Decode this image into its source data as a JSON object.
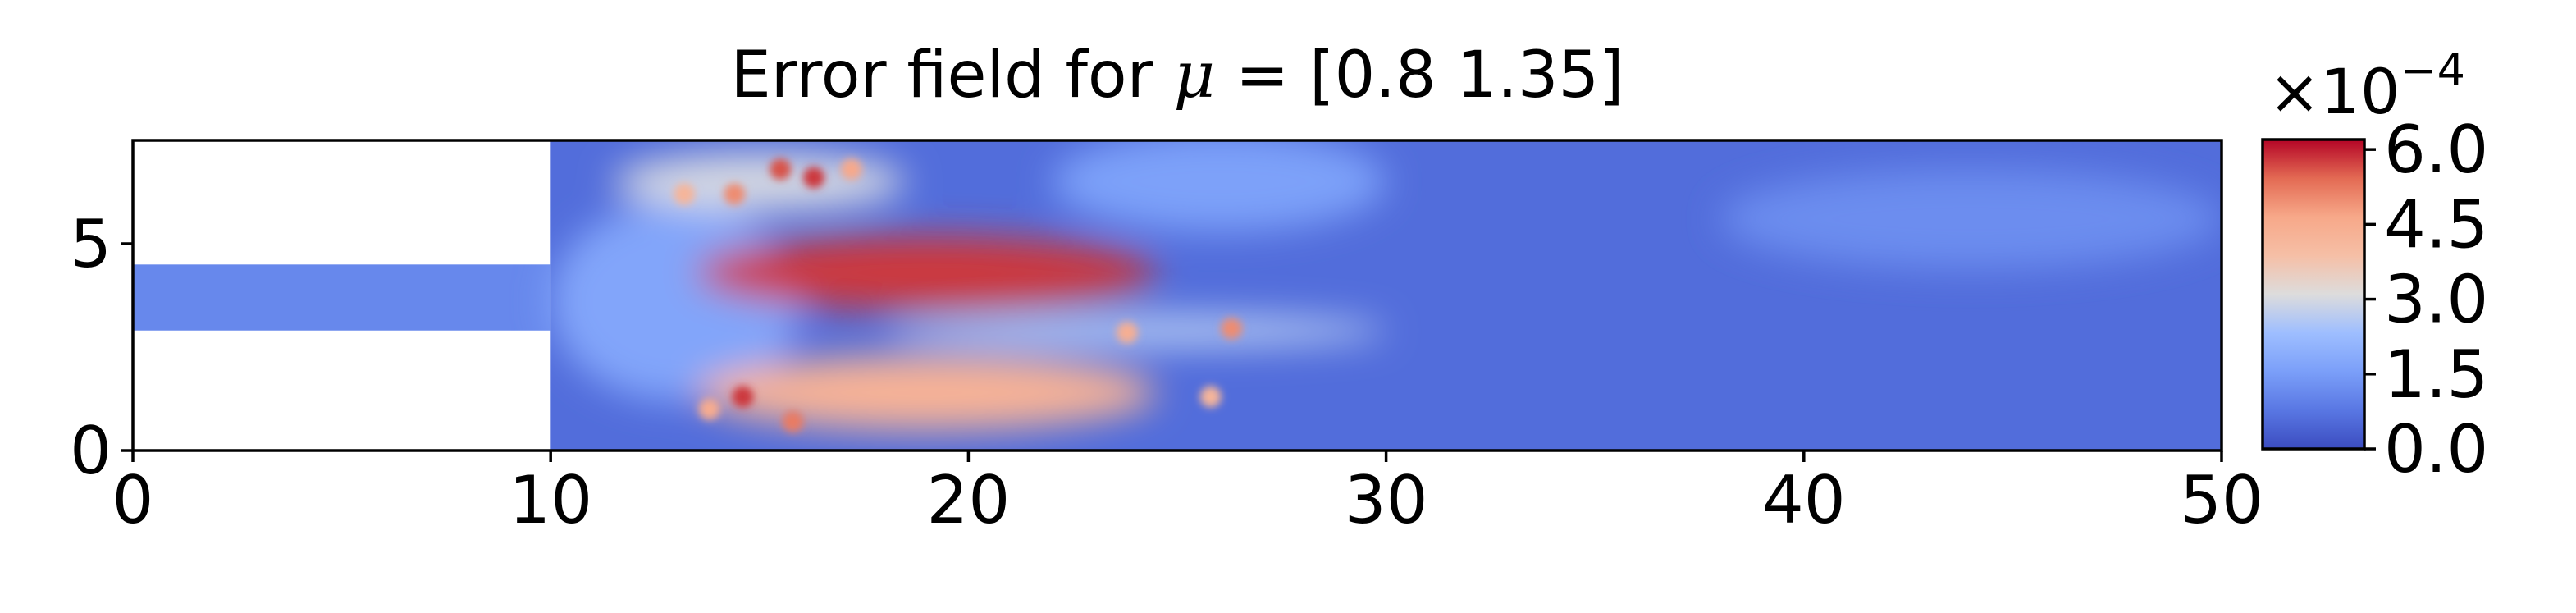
{
  "chart_data": {
    "type": "heatmap",
    "title_prefix": "Error field for ",
    "title_symbol": "μ",
    "title_suffix": " = [0.8  1.35]",
    "xlabel": "",
    "ylabel": "",
    "xlim": [
      0,
      50
    ],
    "ylim": [
      0,
      7.5
    ],
    "x_ticks": [
      0,
      10,
      20,
      30,
      40,
      50
    ],
    "y_ticks": [
      0,
      5
    ],
    "grid": false,
    "domain": {
      "inlet_channel": {
        "x": [
          0,
          10
        ],
        "y": [
          2.9,
          4.5
        ]
      },
      "main_channel": {
        "x": [
          10,
          50
        ],
        "y": [
          0,
          7.5
        ]
      }
    },
    "colormap": "coolwarm",
    "colorbar": {
      "range": [
        0.0,
        6.2
      ],
      "ticks": [
        "0.0",
        "1.5",
        "3.0",
        "4.5",
        "6.0"
      ],
      "tick_values": [
        0.0,
        1.5,
        3.0,
        4.5,
        6.0
      ],
      "scale_base": "×10",
      "scale_exponent": "−4"
    },
    "background_value": 0.6,
    "error_regions": [
      {
        "cx": 19.0,
        "cy": 4.3,
        "rx": 5.5,
        "ry": 0.9,
        "value": 5.8
      },
      {
        "cx": 19.0,
        "cy": 1.4,
        "rx": 5.5,
        "ry": 0.9,
        "value": 4.3
      },
      {
        "cx": 15.0,
        "cy": 6.5,
        "rx": 3.5,
        "ry": 0.7,
        "value": 3.0
      },
      {
        "cx": 24.0,
        "cy": 2.9,
        "rx": 6.0,
        "ry": 0.4,
        "value": 2.6
      },
      {
        "cx": 26.0,
        "cy": 6.5,
        "rx": 4.0,
        "ry": 1.2,
        "value": 1.6
      },
      {
        "cx": 44.0,
        "cy": 5.6,
        "rx": 6.0,
        "ry": 1.2,
        "value": 1.2
      },
      {
        "cx": 13.0,
        "cy": 3.6,
        "rx": 3.0,
        "ry": 2.4,
        "value": 1.7
      }
    ],
    "hotspots": [
      {
        "x": 15.5,
        "y": 6.8,
        "value": 5.6
      },
      {
        "x": 16.3,
        "y": 6.6,
        "value": 5.8
      },
      {
        "x": 14.4,
        "y": 6.2,
        "value": 5.0
      },
      {
        "x": 13.2,
        "y": 6.2,
        "value": 4.2
      },
      {
        "x": 17.2,
        "y": 6.8,
        "value": 4.6
      },
      {
        "x": 14.6,
        "y": 1.3,
        "value": 5.8
      },
      {
        "x": 15.8,
        "y": 0.7,
        "value": 5.2
      },
      {
        "x": 13.8,
        "y": 1.0,
        "value": 4.5
      },
      {
        "x": 23.8,
        "y": 2.85,
        "value": 4.4
      },
      {
        "x": 26.3,
        "y": 2.95,
        "value": 5.0
      },
      {
        "x": 25.8,
        "y": 1.3,
        "value": 4.2
      }
    ]
  }
}
